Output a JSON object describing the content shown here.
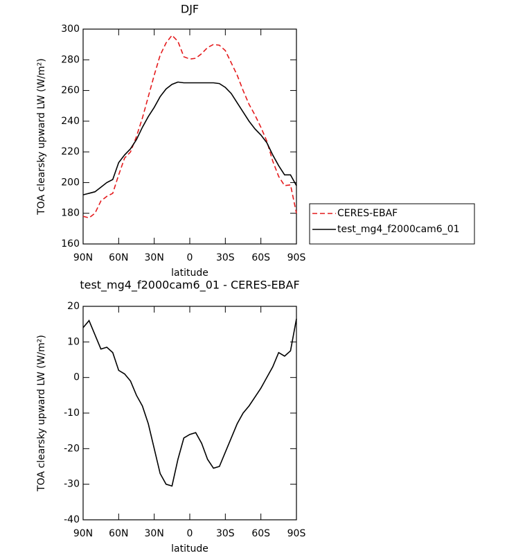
{
  "chart_data": [
    {
      "type": "line",
      "title": "DJF",
      "xlabel": "latitude",
      "ylabel": "TOA clearsky upward LW (W/m²)",
      "x": [
        90,
        85,
        80,
        75,
        70,
        65,
        60,
        55,
        50,
        45,
        40,
        35,
        30,
        25,
        20,
        15,
        10,
        5,
        0,
        -5,
        -10,
        -15,
        -20,
        -25,
        -30,
        -35,
        -40,
        -45,
        -50,
        -55,
        -60,
        -65,
        -70,
        -75,
        -80,
        -85,
        -90
      ],
      "xlim": [
        90,
        -90
      ],
      "xticks": [
        {
          "value": 90,
          "label": "90N"
        },
        {
          "value": 60,
          "label": "60N"
        },
        {
          "value": 30,
          "label": "30N"
        },
        0,
        {
          "value": -30,
          "label": "30S"
        },
        {
          "value": -60,
          "label": "60S"
        },
        {
          "value": -90,
          "label": "90S"
        }
      ],
      "ylim": [
        160,
        300
      ],
      "yticks": [
        160,
        180,
        200,
        220,
        240,
        260,
        280,
        300
      ],
      "legend": "outside-right",
      "series": [
        {
          "name": "CERES-EBAF",
          "color": "#e41a1c",
          "dash": true,
          "values": [
            178,
            177,
            180,
            188,
            191,
            193,
            205,
            216,
            220,
            230,
            242,
            256,
            270,
            283,
            291,
            296,
            292,
            282,
            280.5,
            281,
            284,
            288,
            290,
            289.5,
            286,
            278,
            270,
            260,
            251,
            244,
            236,
            227,
            214,
            204,
            198,
            198.5,
            180
          ]
        },
        {
          "name": "test_mg4_f2000cam6_01",
          "color": "#000000",
          "dash": false,
          "values": [
            192,
            193,
            194,
            197,
            200,
            202,
            213,
            218,
            222,
            228,
            236,
            243,
            249,
            256,
            261,
            264,
            265.5,
            265,
            265,
            265,
            265,
            265,
            265,
            264.5,
            262,
            258,
            252,
            246,
            240,
            235,
            231,
            226,
            218,
            211,
            205,
            205,
            198
          ]
        }
      ]
    },
    {
      "type": "line",
      "title": "test_mg4_f2000cam6_01 - CERES-EBAF",
      "xlabel": "latitude",
      "ylabel": "TOA clearsky upward LW (W/m²)",
      "x": [
        90,
        85,
        80,
        75,
        70,
        65,
        60,
        55,
        50,
        45,
        40,
        35,
        30,
        25,
        20,
        15,
        10,
        5,
        0,
        -5,
        -10,
        -15,
        -20,
        -25,
        -30,
        -35,
        -40,
        -45,
        -50,
        -55,
        -60,
        -65,
        -70,
        -75,
        -80,
        -85,
        -90
      ],
      "xlim": [
        90,
        -90
      ],
      "xticks": [
        {
          "value": 90,
          "label": "90N"
        },
        {
          "value": 60,
          "label": "60N"
        },
        {
          "value": 30,
          "label": "30N"
        },
        0,
        {
          "value": -30,
          "label": "30S"
        },
        {
          "value": -60,
          "label": "60S"
        },
        {
          "value": -90,
          "label": "90S"
        }
      ],
      "ylim": [
        -40,
        20
      ],
      "yticks": [
        -40,
        -30,
        -20,
        -10,
        0,
        10,
        20
      ],
      "color": "#000000",
      "values": [
        14,
        16,
        12,
        8,
        8.5,
        7,
        2,
        1,
        -1,
        -5,
        -8,
        -13,
        -20,
        -27,
        -30,
        -30.5,
        -23,
        -17,
        -16,
        -15.5,
        -18.5,
        -23,
        -25.5,
        -25,
        -21,
        -17,
        -13,
        -10,
        -8,
        -5.5,
        -3,
        0,
        3,
        7,
        6,
        7.5,
        16.5
      ]
    }
  ]
}
